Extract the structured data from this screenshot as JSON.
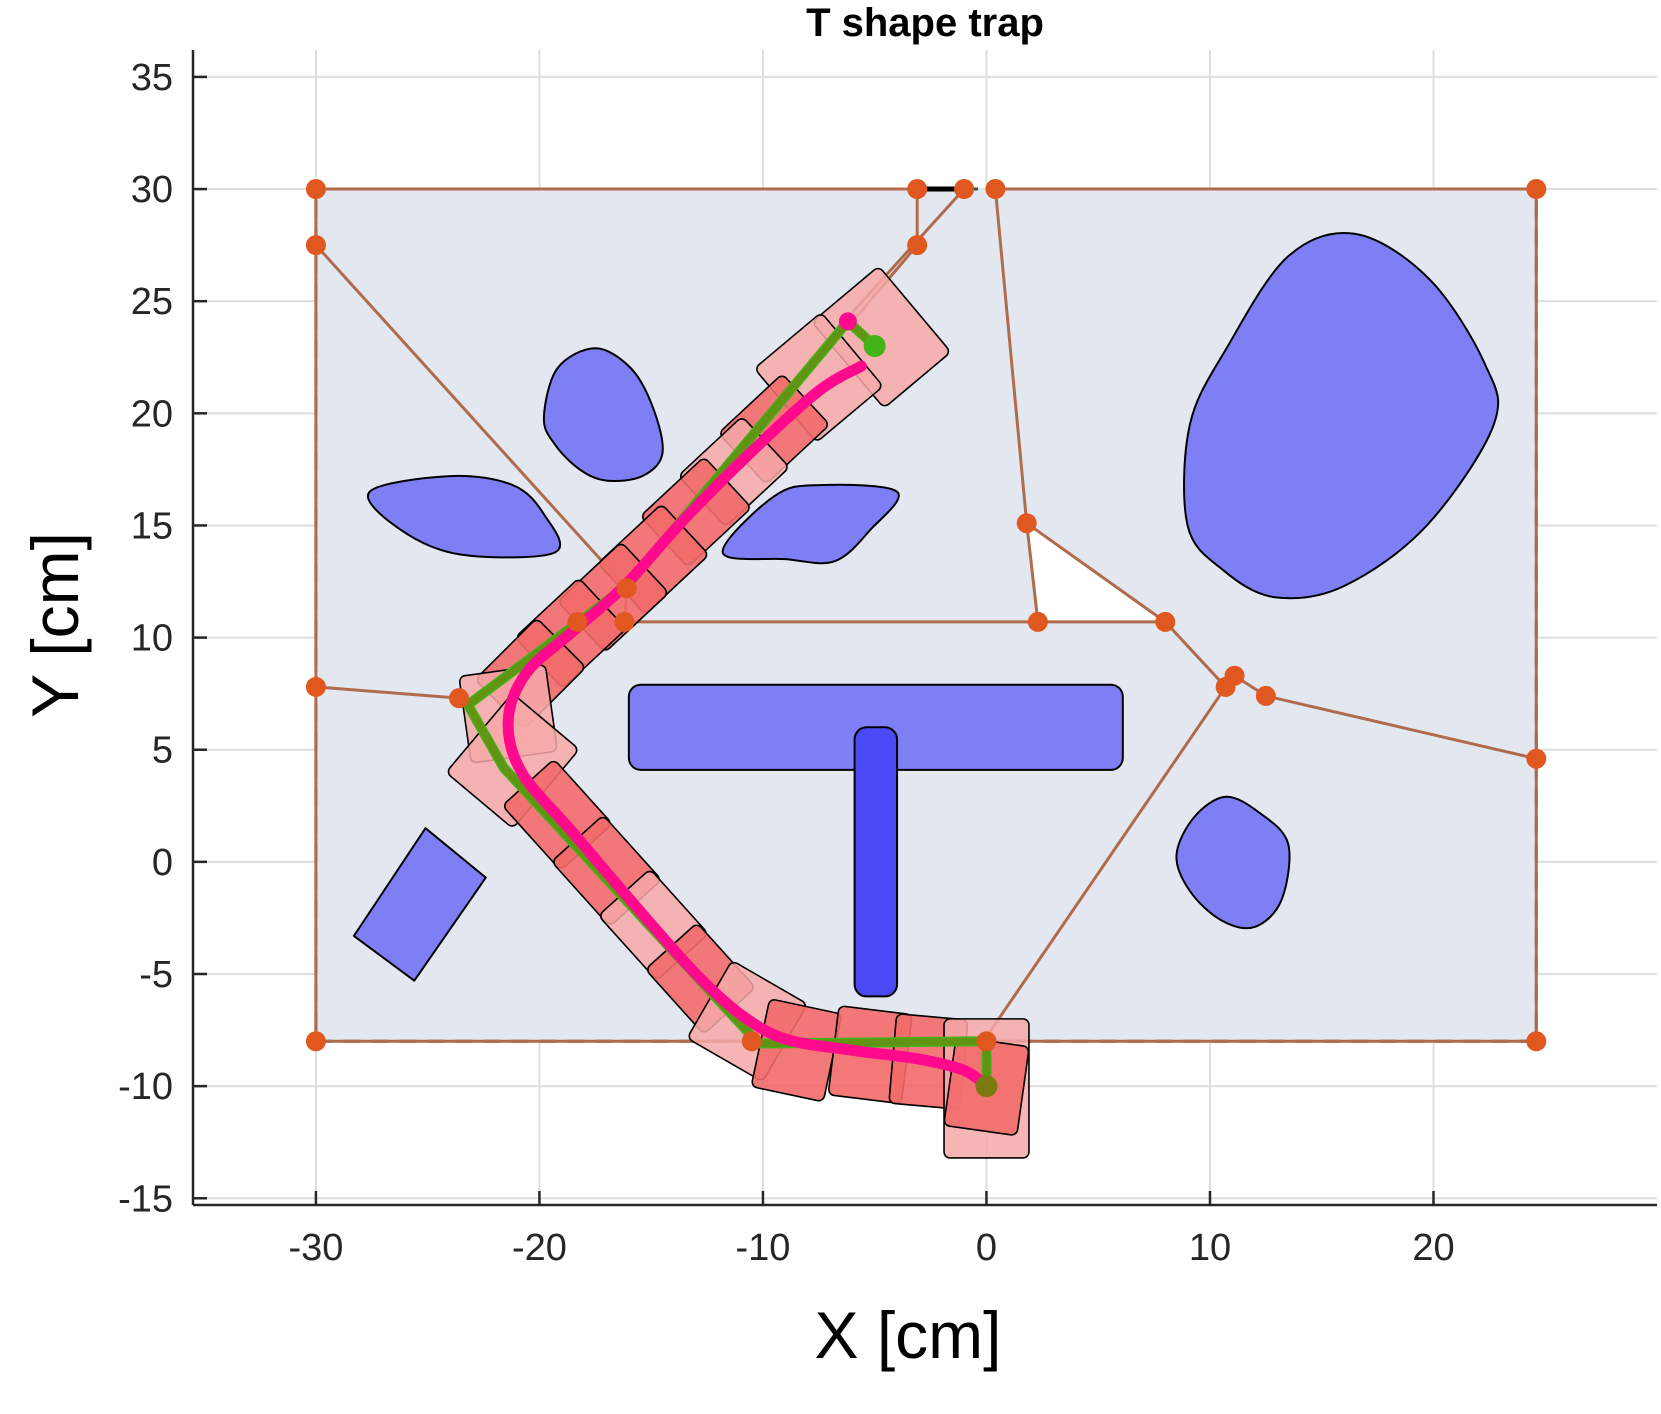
{
  "chart_data": {
    "type": "line",
    "title": "T shape trap",
    "xlabel": "X [cm]",
    "ylabel": "Y [cm]",
    "xlim": [
      -35.5,
      30
    ],
    "ylim": [
      -15.3,
      36.2
    ],
    "grid": true,
    "x_ticks": [
      -30,
      -20,
      -10,
      0,
      10,
      20
    ],
    "x_tick_labels": [
      "-30",
      "-20",
      "-10",
      "0",
      "10",
      "20"
    ],
    "y_ticks": [
      -15,
      -10,
      -5,
      0,
      5,
      10,
      15,
      20,
      25,
      30,
      35
    ],
    "y_tick_labels": [
      "-15",
      "-10",
      "-5",
      "0",
      "5",
      "10",
      "15",
      "20",
      "25",
      "30",
      "35"
    ],
    "colors": {
      "workspace_fill": "#e3e8f0",
      "obstacle": "#7f7ff5",
      "obstacle_dark": "#4a4af5",
      "graph_edge": "#b06b4d",
      "graph_node": "#e0571f",
      "robot_fill": "#f26a6a",
      "robot_fill_light": "#f7a8a8",
      "path_green": "#44b317",
      "path_olive": "#7a7a10",
      "path_magenta": "#ff0a8c"
    },
    "workspace": {
      "x": [
        -30,
        24.6
      ],
      "y": [
        -8,
        30
      ]
    },
    "obstacles": [
      {
        "name": "blob-upper-left",
        "points": [
          [
            -19.8,
            19.8
          ],
          [
            -19.2,
            22
          ],
          [
            -17.5,
            22.9
          ],
          [
            -15.9,
            22
          ],
          [
            -14.9,
            20.2
          ],
          [
            -14.5,
            18.2
          ],
          [
            -15.4,
            17.2
          ],
          [
            -17,
            17
          ],
          [
            -18.2,
            17.5
          ],
          [
            -19.3,
            18.6
          ]
        ]
      },
      {
        "name": "leaf-left",
        "points": [
          [
            -27.6,
            16.5
          ],
          [
            -24,
            17.2
          ],
          [
            -21.2,
            16.8
          ],
          [
            -19.8,
            15.5
          ],
          [
            -19.3,
            13.8
          ],
          [
            -23.5,
            13.7
          ],
          [
            -26.2,
            14.8
          ]
        ]
      },
      {
        "name": "leaf-center",
        "points": [
          [
            -11.8,
            13.8
          ],
          [
            -9.5,
            16.3
          ],
          [
            -7.5,
            16.8
          ],
          [
            -4,
            16.5
          ],
          [
            -5.2,
            14.8
          ],
          [
            -6.8,
            13.4
          ],
          [
            -9,
            13.5
          ]
        ]
      },
      {
        "name": "large-blob-right",
        "points": [
          [
            9,
            15
          ],
          [
            10.6,
            13
          ],
          [
            12.9,
            11.8
          ],
          [
            16,
            12.3
          ],
          [
            19.7,
            15
          ],
          [
            22.7,
            19.5
          ],
          [
            22.3,
            22.2
          ],
          [
            19.8,
            26
          ],
          [
            16.5,
            28
          ],
          [
            13.5,
            27
          ],
          [
            10.8,
            23
          ],
          [
            9.1,
            19.5
          ]
        ]
      },
      {
        "name": "tilted-rect",
        "points": [
          [
            -25.1,
            1.5
          ],
          [
            -22.4,
            -0.7
          ],
          [
            -25.6,
            -5.3
          ],
          [
            -28.3,
            -3.3
          ]
        ]
      },
      {
        "name": "t-bar",
        "points": [
          [
            -16,
            7.9
          ],
          [
            6.1,
            7.9
          ],
          [
            6.1,
            4.1
          ],
          [
            -16,
            4.1
          ]
        ]
      },
      {
        "name": "t-stem",
        "points": [
          [
            -5.9,
            6
          ],
          [
            -4,
            6
          ],
          [
            -4,
            -6
          ],
          [
            -5.9,
            -6
          ]
        ]
      },
      {
        "name": "blob-lower-right",
        "points": [
          [
            8.5,
            0.3
          ],
          [
            9.3,
            2
          ],
          [
            10.7,
            2.9
          ],
          [
            12.2,
            2.2
          ],
          [
            13.5,
            0.8
          ],
          [
            13.2,
            -1.7
          ],
          [
            12,
            -2.9
          ],
          [
            10.5,
            -2.6
          ],
          [
            9.1,
            -1.3
          ]
        ]
      }
    ],
    "graph_nodes": [
      [
        -30,
        30
      ],
      [
        -30,
        27.5
      ],
      [
        -3.1,
        30
      ],
      [
        -3.1,
        27.5
      ],
      [
        -1,
        30
      ],
      [
        0.4,
        30
      ],
      [
        1.8,
        15.1
      ],
      [
        2.3,
        10.7
      ],
      [
        8,
        10.7
      ],
      [
        10.7,
        7.8
      ],
      [
        11.1,
        8.3
      ],
      [
        12.5,
        7.4
      ],
      [
        24.6,
        30
      ],
      [
        24.6,
        4.6
      ],
      [
        -30,
        7.8
      ],
      [
        -23.6,
        7.3
      ],
      [
        -16.1,
        12.2
      ],
      [
        -16.2,
        10.7
      ],
      [
        -18.3,
        10.7
      ],
      [
        -30,
        -8
      ],
      [
        -10.5,
        -8
      ],
      [
        0,
        -8
      ],
      [
        24.6,
        -8
      ]
    ],
    "graph_edges": [
      [
        [
          -30,
          27.5
        ],
        [
          -16.1,
          12.2
        ]
      ],
      [
        [
          -3.1,
          30
        ],
        [
          -3.1,
          27.5
        ]
      ],
      [
        [
          -3.1,
          27.5
        ],
        [
          -6.5,
          23.5
        ]
      ],
      [
        [
          -1,
          30
        ],
        [
          -6,
          24.5
        ]
      ],
      [
        [
          0.4,
          30
        ],
        [
          1.8,
          15.1
        ]
      ],
      [
        [
          1.8,
          15.1
        ],
        [
          2.3,
          10.7
        ]
      ],
      [
        [
          1.8,
          15.1
        ],
        [
          8,
          10.7
        ]
      ],
      [
        [
          -16.2,
          10.7
        ],
        [
          8,
          10.7
        ]
      ],
      [
        [
          8,
          10.7
        ],
        [
          10.7,
          7.8
        ]
      ],
      [
        [
          10.7,
          7.8
        ],
        [
          11.1,
          8.3
        ]
      ],
      [
        [
          11.1,
          8.3
        ],
        [
          12.5,
          7.4
        ]
      ],
      [
        [
          12.5,
          7.4
        ],
        [
          24.6,
          4.6
        ]
      ],
      [
        [
          10.7,
          7.8
        ],
        [
          0,
          -7.8
        ]
      ],
      [
        [
          -30,
          7.8
        ],
        [
          -23.6,
          7.3
        ]
      ],
      [
        [
          -16.1,
          12.2
        ],
        [
          -16.2,
          10.7
        ]
      ]
    ],
    "reference_path": [
      [
        -5,
        23
      ],
      [
        -6.2,
        24.1
      ],
      [
        -16.1,
        12.3
      ],
      [
        -23.2,
        7
      ],
      [
        -21.6,
        4.2
      ],
      [
        -10.2,
        -8.1
      ],
      [
        0,
        -8
      ],
      [
        0,
        -10
      ]
    ],
    "smoothed_path": [
      [
        -5.6,
        22.1
      ],
      [
        -7.5,
        21
      ],
      [
        -10.5,
        18.3
      ],
      [
        -13.5,
        15.3
      ],
      [
        -16.2,
        12.3
      ],
      [
        -18.6,
        10.2
      ],
      [
        -20.6,
        8.4
      ],
      [
        -21.4,
        6.3
      ],
      [
        -20.8,
        4
      ],
      [
        -18.5,
        1.3
      ],
      [
        -15.5,
        -2.2
      ],
      [
        -13,
        -5
      ],
      [
        -11,
        -6.8
      ],
      [
        -9,
        -7.9
      ],
      [
        -6,
        -8.4
      ],
      [
        -3,
        -8.8
      ],
      [
        -1,
        -9.3
      ],
      [
        0,
        -10
      ]
    ],
    "robot_footprints": [
      {
        "c": [
          -4.7,
          23.4
        ],
        "a": 40,
        "w": 3.9,
        "h": 5.0,
        "light": true
      },
      {
        "c": [
          -7.5,
          21.6
        ],
        "a": 40,
        "w": 3.9,
        "h": 4.3,
        "light": true
      },
      {
        "c": [
          -9.5,
          19.3
        ],
        "a": 43,
        "w": 3.9,
        "h": 3.1,
        "light": false
      },
      {
        "c": [
          -11.3,
          17.4
        ],
        "a": 43,
        "w": 3.9,
        "h": 3.1,
        "light": true
      },
      {
        "c": [
          -13,
          15.6
        ],
        "a": 43,
        "w": 3.9,
        "h": 3.1,
        "light": false
      },
      {
        "c": [
          -14.9,
          13.5
        ],
        "a": 43,
        "w": 3.9,
        "h": 3.1,
        "light": false
      },
      {
        "c": [
          -16.7,
          11.8
        ],
        "a": 43,
        "w": 3.9,
        "h": 3.1,
        "light": false
      },
      {
        "c": [
          -18.6,
          10.2
        ],
        "a": 43,
        "w": 3.9,
        "h": 3.1,
        "light": false
      },
      {
        "c": [
          -20.4,
          8.4
        ],
        "a": 45,
        "w": 3.9,
        "h": 3.1,
        "light": false
      },
      {
        "c": [
          -21.4,
          6.6
        ],
        "a": 8,
        "w": 3.9,
        "h": 3.9,
        "light": true
      },
      {
        "c": [
          -21.2,
          4.5
        ],
        "a": -40,
        "w": 3.9,
        "h": 4.6,
        "light": true
      },
      {
        "c": [
          -19.2,
          2.1
        ],
        "a": -48,
        "w": 3.9,
        "h": 3.1,
        "light": false
      },
      {
        "c": [
          -17,
          -0.4
        ],
        "a": -48,
        "w": 3.9,
        "h": 3.1,
        "light": false
      },
      {
        "c": [
          -14.9,
          -2.8
        ],
        "a": -48,
        "w": 3.9,
        "h": 3.1,
        "light": true
      },
      {
        "c": [
          -12.8,
          -5.2
        ],
        "a": -48,
        "w": 3.9,
        "h": 3.1,
        "light": false
      },
      {
        "c": [
          -10.7,
          -7.1
        ],
        "a": -30,
        "w": 3.9,
        "h": 4.0,
        "light": true
      },
      {
        "c": [
          -8.5,
          -8.4
        ],
        "a": -12,
        "w": 3.3,
        "h": 4.0,
        "light": false
      },
      {
        "c": [
          -5.2,
          -8.6
        ],
        "a": -7,
        "w": 3.3,
        "h": 4.0,
        "light": false
      },
      {
        "c": [
          -2.6,
          -8.9
        ],
        "a": -5,
        "w": 3.2,
        "h": 4.0,
        "light": false
      },
      {
        "c": [
          0,
          -10.1
        ],
        "a": 0,
        "w": 3.8,
        "h": 6.2,
        "light": true
      },
      {
        "c": [
          0,
          -10
        ],
        "a": -8,
        "w": 3.3,
        "h": 4.0,
        "light": false
      }
    ]
  }
}
